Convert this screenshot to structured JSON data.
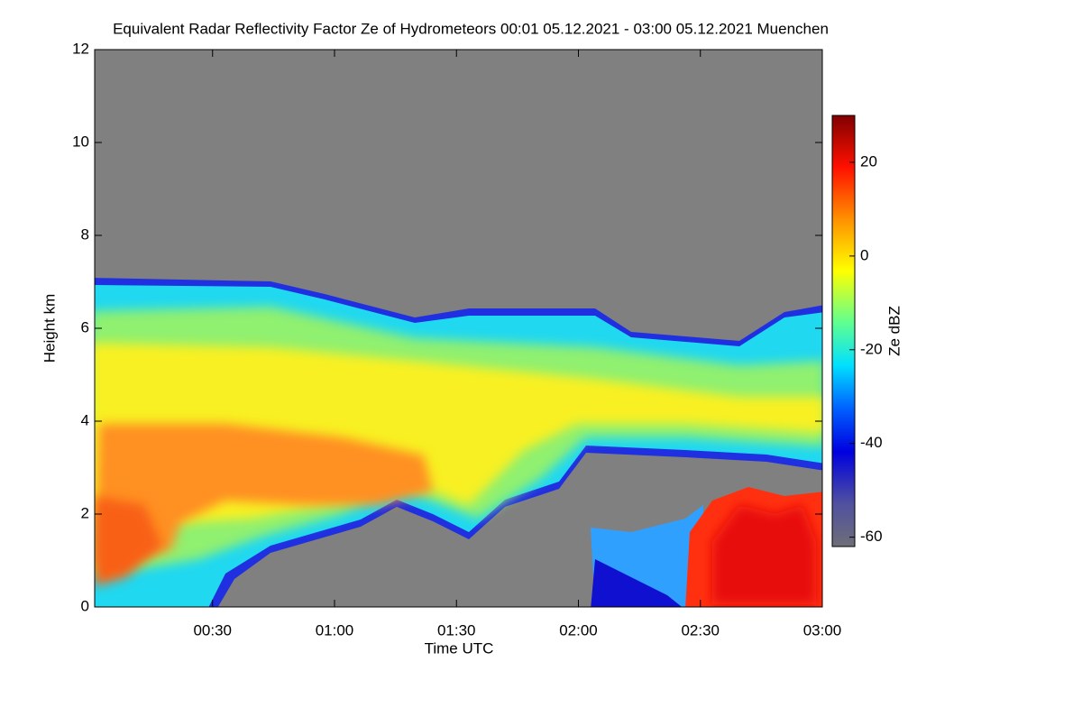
{
  "chart_data": {
    "type": "heatmap",
    "title": "Equivalent Radar Reflectivity Factor Ze of Hydrometeors   00:01 05.12.2021 - 03:00 05.12.2021 Muenchen",
    "xlabel": "Time UTC",
    "ylabel": "Height km",
    "colorbar_label": "Ze dBZ",
    "xlim": [
      1,
      180
    ],
    "xticks": [
      {
        "value": 30,
        "label": "00:30"
      },
      {
        "value": 60,
        "label": "01:00"
      },
      {
        "value": 90,
        "label": "01:30"
      },
      {
        "value": 120,
        "label": "02:00"
      },
      {
        "value": 150,
        "label": "02:30"
      },
      {
        "value": 180,
        "label": "03:00"
      }
    ],
    "ylim": [
      0,
      12
    ],
    "yticks": [
      0,
      2,
      4,
      6,
      8,
      10,
      12
    ],
    "clim": [
      -62,
      30
    ],
    "cticks": [
      -60,
      -40,
      -20,
      0,
      20
    ]
  }
}
